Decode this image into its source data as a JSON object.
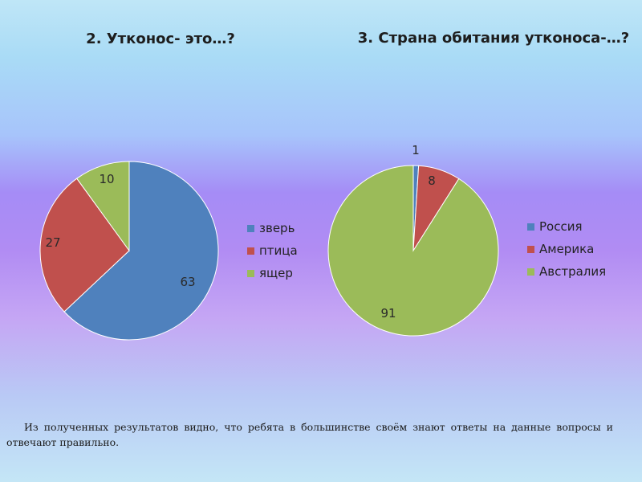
{
  "chart_data": [
    {
      "type": "pie",
      "title": "2. Утконос- это…?",
      "categories": [
        "зверь",
        "птица",
        "ящер"
      ],
      "values": [
        63,
        27,
        10
      ],
      "colors": [
        "#4f81bd",
        "#c0504d",
        "#9bbb59"
      ],
      "legend": "right",
      "start_angle_deg": -90
    },
    {
      "type": "pie",
      "title": "3. Страна обитания утконоса-…?",
      "categories": [
        "Россия",
        "Америка",
        "Австралия"
      ],
      "values": [
        1,
        8,
        91
      ],
      "colors": [
        "#4f81bd",
        "#c0504d",
        "#9bbb59"
      ],
      "legend": "right",
      "start_angle_deg": -90
    }
  ],
  "caption": "Из полученных результатов видно, что ребята в большинстве своём знают ответы на данные вопросы и отвечают правильно."
}
